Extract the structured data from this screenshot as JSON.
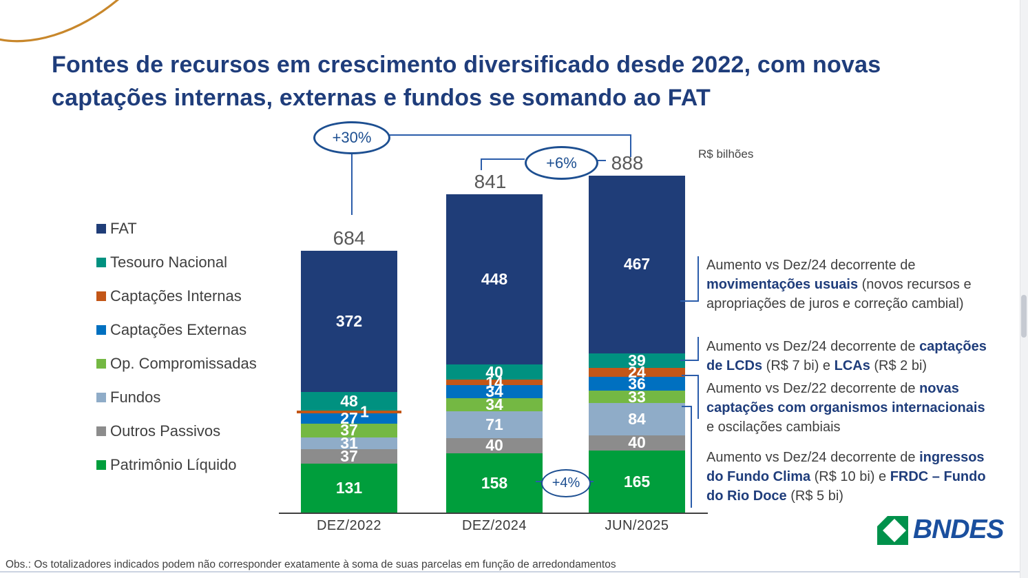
{
  "page": {
    "title_line1": "Fontes de recursos em crescimento diversificado desde 2022, com novas",
    "title_line2": "captações internas, externas e fundos se somando ao FAT",
    "unit_label": "R$ bilhões",
    "footnote": "Obs.: Os totalizadores indicados podem não corresponder exatamente à soma de suas parcelas em função de arredondamentos",
    "logo_text": "BNDES"
  },
  "colors": {
    "title_blue": "#1F3D7B",
    "bubble_blue": "#1D4F91",
    "callout_line_blue": "#2A5CAA",
    "body_text": "#3F3F3F",
    "total_text": "#595959",
    "logo_green": "#00914B",
    "logo_blue": "#1A4F9E",
    "arc_gold": "#C8872B"
  },
  "chart_data": {
    "type": "bar",
    "stacked": true,
    "title": "Fontes de recursos (R$ bilhões)",
    "unit": "R$ bilhões",
    "grid": false,
    "legend_position": "left",
    "categories": [
      "DEZ/2022",
      "DEZ/2024",
      "JUN/2025"
    ],
    "totals": [
      684,
      841,
      888
    ],
    "series": [
      {
        "name": "FAT",
        "color": "#1F3D78",
        "values": [
          372,
          448,
          467
        ]
      },
      {
        "name": "Tesouro Nacional",
        "color": "#009180",
        "values": [
          48,
          40,
          39
        ]
      },
      {
        "name": "Captações Internas",
        "color": "#C35617",
        "values": [
          1,
          14,
          24
        ]
      },
      {
        "name": "Captações Externas",
        "color": "#0070C0",
        "values": [
          27,
          34,
          36
        ]
      },
      {
        "name": "Op. Compromissadas",
        "color": "#74B843",
        "values": [
          37,
          34,
          33
        ]
      },
      {
        "name": "Fundos",
        "color": "#8FACC8",
        "values": [
          31,
          71,
          84
        ]
      },
      {
        "name": "Outros Passivos",
        "color": "#8C8C8C",
        "values": [
          37,
          40,
          40
        ]
      },
      {
        "name": "Patrimônio Líquido",
        "color": "#009E3C",
        "values": [
          131,
          158,
          165
        ]
      }
    ],
    "growth_annotations": [
      {
        "label": "+30%",
        "from": "DEZ/2022",
        "to": "JUN/2025"
      },
      {
        "label": "+6%",
        "from": "DEZ/2024",
        "to": "JUN/2025"
      },
      {
        "label": "+4%",
        "from": "DEZ/2024",
        "to": "JUN/2025",
        "series": "Patrimônio Líquido"
      }
    ]
  },
  "annotations": [
    {
      "runs": [
        {
          "t": "Aumento vs Dez/24 decorrente de\n",
          "b": false
        },
        {
          "t": "movimentações usuais",
          "b": true
        },
        {
          "t": " (novos recursos e\napropriações de juros e correção cambial)",
          "b": false
        }
      ]
    },
    {
      "runs": [
        {
          "t": "Aumento vs Dez/24 decorrente de ",
          "b": false
        },
        {
          "t": "captações\nde LCDs",
          "b": true
        },
        {
          "t": " (R$ 7 bi) e ",
          "b": false
        },
        {
          "t": "LCAs",
          "b": true
        },
        {
          "t": " (R$ 2 bi)",
          "b": false
        }
      ]
    },
    {
      "runs": [
        {
          "t": "Aumento vs Dez/22 decorrente de ",
          "b": false
        },
        {
          "t": "novas\ncaptações com organismos internacionais",
          "b": true
        },
        {
          "t": "\ne oscilações cambiais",
          "b": false
        }
      ]
    },
    {
      "runs": [
        {
          "t": "Aumento vs Dez/24 decorrente de ",
          "b": false
        },
        {
          "t": "ingressos\ndo Fundo Clima",
          "b": true
        },
        {
          "t": " (R$ 10 bi) e ",
          "b": false
        },
        {
          "t": "FRDC – Fundo\ndo Rio Doce",
          "b": true
        },
        {
          "t": " (R$ 5 bi)",
          "b": false
        }
      ]
    }
  ]
}
